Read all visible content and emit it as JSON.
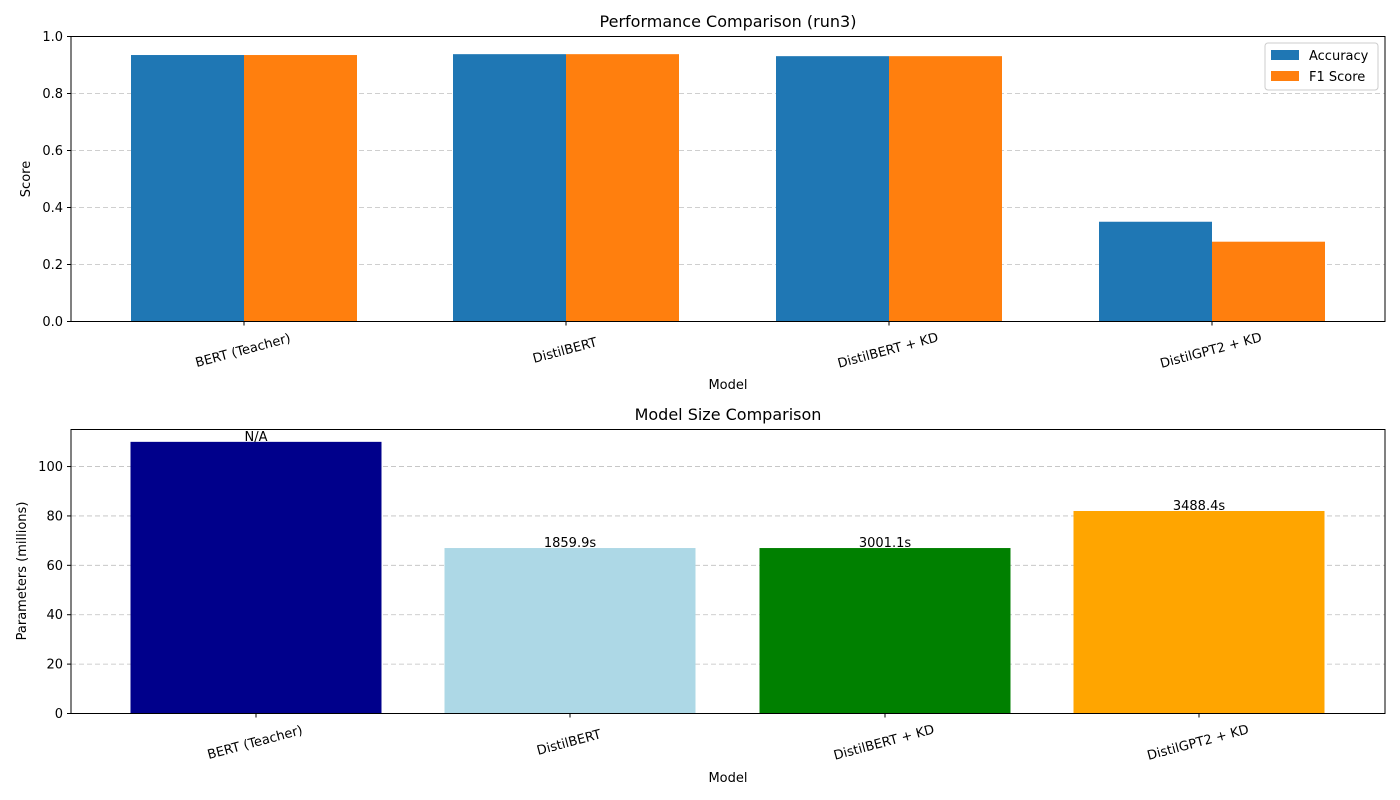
{
  "chart_data": [
    {
      "type": "bar",
      "title": "Performance Comparison (run3)",
      "xlabel": "Model",
      "ylabel": "Score",
      "ylim": [
        0,
        1.0
      ],
      "yticks": [
        "0.0",
        "0.2",
        "0.4",
        "0.6",
        "0.8",
        "1.0"
      ],
      "categories": [
        "BERT (Teacher)",
        "DistilBERT",
        "DistilBERT + KD",
        "DistilGPT2 + KD"
      ],
      "series": [
        {
          "name": "Accuracy",
          "color": "#1f77b4",
          "values": [
            0.935,
            0.938,
            0.931,
            0.35
          ]
        },
        {
          "name": "F1 Score",
          "color": "#ff7f0e",
          "values": [
            0.935,
            0.938,
            0.931,
            0.28
          ]
        }
      ],
      "grid": "y",
      "legend": "top-right"
    },
    {
      "type": "bar",
      "title": "Model Size Comparison",
      "xlabel": "Model",
      "ylabel": "Parameters (millions)",
      "ylim": [
        0,
        115
      ],
      "yticks": [
        "0",
        "20",
        "40",
        "60",
        "80",
        "100"
      ],
      "categories": [
        "BERT (Teacher)",
        "DistilBERT",
        "DistilBERT + KD",
        "DistilGPT2 + KD"
      ],
      "values": [
        110,
        67,
        67,
        82
      ],
      "colors": [
        "#00008b",
        "#add8e6",
        "#008000",
        "#ffa500"
      ],
      "data_labels": [
        "N/A",
        "1859.9s",
        "3001.1s",
        "3488.4s"
      ],
      "grid": "y"
    }
  ]
}
